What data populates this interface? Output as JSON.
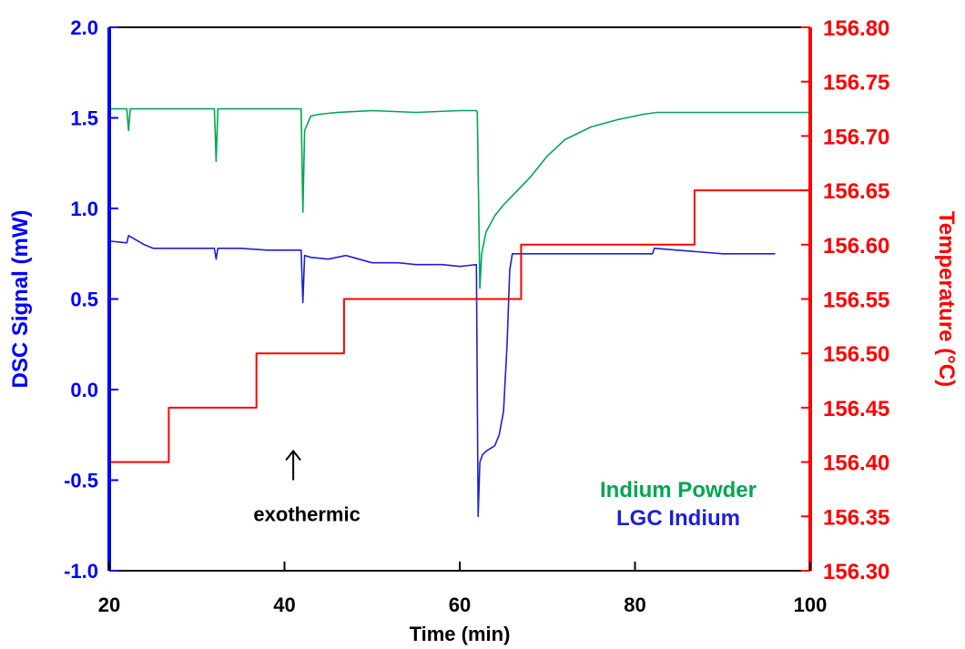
{
  "chart_data": {
    "type": "line",
    "title": "",
    "xlabel": "Time (min)",
    "ylabel": "DSC Signal (mW)",
    "y2label": "Temperature (°C)",
    "xlim": [
      20,
      100
    ],
    "ylim": [
      -1.0,
      2.0
    ],
    "y2lim": [
      156.3,
      156.8
    ],
    "xticks": [
      "20",
      "40",
      "60",
      "80",
      "100"
    ],
    "yticks": [
      "-1.0",
      "-0.5",
      "0.0",
      "0.5",
      "1.0",
      "1.5",
      "2.0"
    ],
    "y2ticks": [
      "156.30",
      "156.35",
      "156.40",
      "156.45",
      "156.50",
      "156.55",
      "156.60",
      "156.65",
      "156.70",
      "156.75",
      "156.80"
    ],
    "grid": false,
    "colors": {
      "left_axis": "#0000ff",
      "right_axis": "#ff0000",
      "x_axis": "#000000"
    },
    "series": [
      {
        "name": "Indium Powder",
        "axis": "left",
        "color": "#00a651",
        "x": [
          20,
          22,
          22.2,
          22.4,
          24,
          32,
          32.2,
          32.4,
          40,
          41.9,
          42.1,
          42.3,
          43,
          44,
          46,
          50,
          55,
          60,
          61.9,
          62.0,
          62.3,
          62.5,
          63,
          64,
          65,
          66,
          67,
          68,
          70,
          72,
          75,
          78,
          81,
          82.5,
          90,
          100
        ],
        "y": [
          1.55,
          1.55,
          1.43,
          1.55,
          1.55,
          1.55,
          1.26,
          1.55,
          1.55,
          1.55,
          0.98,
          1.43,
          1.51,
          1.52,
          1.53,
          1.54,
          1.53,
          1.54,
          1.54,
          1.53,
          0.56,
          0.75,
          0.87,
          0.96,
          1.02,
          1.07,
          1.12,
          1.17,
          1.29,
          1.38,
          1.45,
          1.49,
          1.52,
          1.53,
          1.53,
          1.53
        ]
      },
      {
        "name": "LGC Indium",
        "axis": "left",
        "color": "#1f1fd6",
        "x": [
          20,
          22,
          22.2,
          24,
          25,
          32,
          32.2,
          32.4,
          35,
          38,
          41.9,
          42.1,
          42.3,
          43,
          45,
          47,
          50,
          53,
          55,
          58,
          60,
          61.9,
          62.1,
          62.3,
          62.6,
          63,
          64,
          64.5,
          65,
          65.4,
          65.7,
          66,
          70,
          80,
          82,
          82.2,
          90,
          96
        ],
        "y": [
          0.82,
          0.81,
          0.85,
          0.8,
          0.78,
          0.78,
          0.72,
          0.78,
          0.78,
          0.77,
          0.77,
          0.48,
          0.74,
          0.73,
          0.72,
          0.74,
          0.7,
          0.7,
          0.69,
          0.69,
          0.68,
          0.69,
          -0.7,
          -0.4,
          -0.36,
          -0.34,
          -0.31,
          -0.25,
          -0.12,
          0.25,
          0.66,
          0.75,
          0.75,
          0.75,
          0.75,
          0.78,
          0.75,
          0.75
        ]
      },
      {
        "name": "Temperature",
        "axis": "right",
        "color": "#ff0000",
        "x": [
          20,
          26.8,
          26.8,
          36.8,
          36.8,
          46.8,
          46.8,
          67.0,
          67.0,
          86.8,
          86.8,
          100
        ],
        "y": [
          156.4,
          156.4,
          156.45,
          156.45,
          156.5,
          156.5,
          156.55,
          156.55,
          156.6,
          156.6,
          156.65,
          156.65
        ]
      }
    ],
    "legend": {
      "placement": "bottom-right",
      "entries": [
        {
          "label": "Indium Powder",
          "color": "#00a651"
        },
        {
          "label": "LGC Indium",
          "color": "#1f1fd6"
        }
      ]
    },
    "annotation": {
      "text": "exothermic",
      "arrow": "up",
      "x": 41,
      "y": -0.5
    }
  }
}
